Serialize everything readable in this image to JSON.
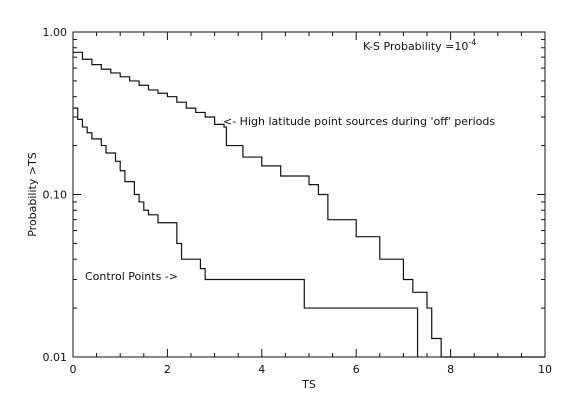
{
  "chart_data": {
    "type": "line",
    "title": "",
    "xlabel": "TS",
    "ylabel": "Probability >TS",
    "xlim": [
      0,
      10
    ],
    "ylim": [
      0.01,
      1.0
    ],
    "y_scale": "log",
    "grid": false,
    "x_ticks": [
      0,
      2,
      4,
      6,
      8,
      10
    ],
    "x_tick_labels": [
      "0",
      "2",
      "4",
      "6",
      "8",
      "10"
    ],
    "y_ticks": [
      0.01,
      0.1,
      1.0
    ],
    "y_tick_labels": [
      "0.01",
      "0.10",
      "1.00"
    ],
    "annotations": {
      "ks_prefix": "K-S Probability =10",
      "ks_exponent": "-4",
      "high_latitude": "<- High latitude point sources during 'off' periods",
      "control_points": "Control Points ->"
    },
    "series": [
      {
        "values": [
          [
            0,
            0.75
          ],
          [
            0.2,
            0.68
          ],
          [
            0.4,
            0.63
          ],
          [
            0.6,
            0.59
          ],
          [
            0.8,
            0.56
          ],
          [
            1.0,
            0.53
          ],
          [
            1.2,
            0.5
          ],
          [
            1.4,
            0.47
          ],
          [
            1.6,
            0.44
          ],
          [
            1.8,
            0.42
          ],
          [
            2.0,
            0.4
          ],
          [
            2.2,
            0.37
          ],
          [
            2.4,
            0.34
          ],
          [
            2.6,
            0.32
          ],
          [
            2.8,
            0.3
          ],
          [
            3.0,
            0.27
          ],
          [
            3.2,
            0.26
          ],
          [
            3.25,
            0.2
          ],
          [
            3.6,
            0.17
          ],
          [
            4.0,
            0.15
          ],
          [
            4.4,
            0.13
          ],
          [
            5.0,
            0.115
          ],
          [
            5.2,
            0.1
          ],
          [
            5.4,
            0.07
          ],
          [
            6.0,
            0.055
          ],
          [
            6.5,
            0.04
          ],
          [
            7.0,
            0.03
          ],
          [
            7.2,
            0.025
          ],
          [
            7.5,
            0.02
          ],
          [
            7.6,
            0.013
          ],
          [
            7.8,
            0.013
          ],
          [
            7.8,
            0.01
          ],
          [
            10.0,
            0.01
          ]
        ]
      },
      {
        "values": [
          [
            0,
            0.34
          ],
          [
            0.1,
            0.29
          ],
          [
            0.2,
            0.26
          ],
          [
            0.3,
            0.24
          ],
          [
            0.4,
            0.22
          ],
          [
            0.6,
            0.2
          ],
          [
            0.7,
            0.18
          ],
          [
            0.9,
            0.16
          ],
          [
            1.0,
            0.14
          ],
          [
            1.1,
            0.12
          ],
          [
            1.3,
            0.1
          ],
          [
            1.4,
            0.09
          ],
          [
            1.5,
            0.08
          ],
          [
            1.6,
            0.075
          ],
          [
            1.8,
            0.067
          ],
          [
            2.2,
            0.05
          ],
          [
            2.3,
            0.04
          ],
          [
            2.7,
            0.035
          ],
          [
            2.8,
            0.03
          ],
          [
            4.8,
            0.03
          ],
          [
            4.9,
            0.02
          ],
          [
            7.3,
            0.02
          ],
          [
            7.3,
            0.01
          ]
        ]
      }
    ]
  }
}
